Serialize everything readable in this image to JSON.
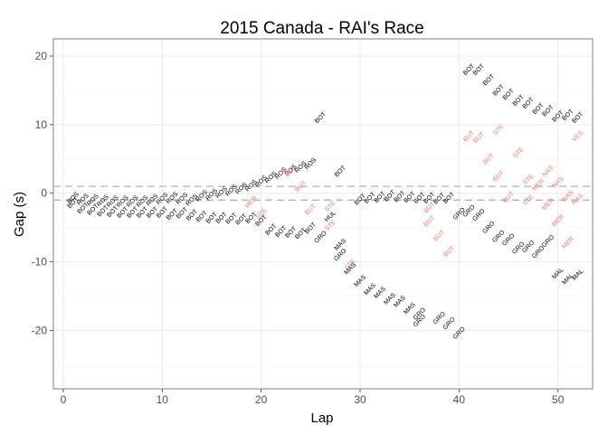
{
  "chart_data": {
    "type": "scatter",
    "title": "2015 Canada - RAI's Race",
    "xlabel": "Lap",
    "ylabel": "Gap (s)",
    "xlim": [
      -1,
      53.5
    ],
    "ylim": [
      -28.5,
      22.5
    ],
    "xticks": [
      0,
      10,
      20,
      30,
      40,
      50
    ],
    "yticks": [
      -20,
      -10,
      0,
      10,
      20
    ],
    "grid": true,
    "reference_lines": [
      1,
      -1
    ],
    "colors": {
      "normal": "#000000",
      "highlight": "#f8766d",
      "reference": "#b3b3b3"
    },
    "points": [
      {
        "x": 1,
        "y": -0.7,
        "label": "ROS",
        "h": false
      },
      {
        "x": 1,
        "y": -1.4,
        "label": "BOT",
        "h": false
      },
      {
        "x": 2,
        "y": -0.9,
        "label": "ROS",
        "h": false
      },
      {
        "x": 2,
        "y": -2.2,
        "label": "BOT",
        "h": false
      },
      {
        "x": 3,
        "y": -1.0,
        "label": "ROS",
        "h": false
      },
      {
        "x": 3,
        "y": -2.4,
        "label": "BOT",
        "h": false
      },
      {
        "x": 4,
        "y": -1.1,
        "label": "ROS",
        "h": false
      },
      {
        "x": 4,
        "y": -2.6,
        "label": "BOT",
        "h": false
      },
      {
        "x": 5,
        "y": -1.2,
        "label": "ROS",
        "h": false
      },
      {
        "x": 5,
        "y": -2.7,
        "label": "BOT",
        "h": false
      },
      {
        "x": 6,
        "y": -1.2,
        "label": "ROS",
        "h": false
      },
      {
        "x": 6,
        "y": -2.8,
        "label": "BOT",
        "h": false
      },
      {
        "x": 7,
        "y": -1.2,
        "label": "ROS",
        "h": false
      },
      {
        "x": 7,
        "y": -2.8,
        "label": "BOT",
        "h": false
      },
      {
        "x": 8,
        "y": -1.2,
        "label": "ROS",
        "h": false
      },
      {
        "x": 8,
        "y": -2.8,
        "label": "BOT",
        "h": false
      },
      {
        "x": 9,
        "y": -1.0,
        "label": "ROS",
        "h": false
      },
      {
        "x": 9,
        "y": -2.8,
        "label": "BOT",
        "h": false
      },
      {
        "x": 10,
        "y": -0.8,
        "label": "ROS",
        "h": false
      },
      {
        "x": 10,
        "y": -2.8,
        "label": "BOT",
        "h": false
      },
      {
        "x": 11,
        "y": -0.7,
        "label": "ROS",
        "h": false
      },
      {
        "x": 11,
        "y": -3.1,
        "label": "BOT",
        "h": false
      },
      {
        "x": 12,
        "y": -0.8,
        "label": "ROS",
        "h": false
      },
      {
        "x": 12,
        "y": -2.9,
        "label": "BOT",
        "h": false
      },
      {
        "x": 13,
        "y": -1.0,
        "label": "ROS",
        "h": false
      },
      {
        "x": 13,
        "y": -3.2,
        "label": "BOT",
        "h": false
      },
      {
        "x": 14,
        "y": -0.4,
        "label": "ROS",
        "h": false
      },
      {
        "x": 14,
        "y": -3.4,
        "label": "BOT",
        "h": false
      },
      {
        "x": 15,
        "y": -0.2,
        "label": "ROS",
        "h": false
      },
      {
        "x": 15,
        "y": -3.6,
        "label": "BOT",
        "h": false
      },
      {
        "x": 16,
        "y": 0.1,
        "label": "ROS",
        "h": false
      },
      {
        "x": 16,
        "y": -3.6,
        "label": "BOT",
        "h": false
      },
      {
        "x": 17,
        "y": 0.4,
        "label": "ROS",
        "h": false
      },
      {
        "x": 17,
        "y": -3.7,
        "label": "BOT",
        "h": false
      },
      {
        "x": 18,
        "y": 0.7,
        "label": "ROS",
        "h": false
      },
      {
        "x": 18,
        "y": -3.8,
        "label": "BOT",
        "h": false
      },
      {
        "x": 19,
        "y": 1.1,
        "label": "ROS",
        "h": false
      },
      {
        "x": 19,
        "y": -1.3,
        "label": "MER",
        "h": true
      },
      {
        "x": 19,
        "y": -3.6,
        "label": "BOT",
        "h": false
      },
      {
        "x": 20,
        "y": 1.7,
        "label": "ROS",
        "h": false
      },
      {
        "x": 20,
        "y": -3.0,
        "label": "STE",
        "h": true
      },
      {
        "x": 20,
        "y": -4.0,
        "label": "BOT",
        "h": false
      },
      {
        "x": 21,
        "y": 2.3,
        "label": "ROS",
        "h": false
      },
      {
        "x": 21,
        "y": -5.3,
        "label": "BOT",
        "h": false
      },
      {
        "x": 22,
        "y": 2.9,
        "label": "ROS",
        "h": false
      },
      {
        "x": 22,
        "y": -5.6,
        "label": "BOT",
        "h": false
      },
      {
        "x": 23,
        "y": 3.3,
        "label": "ROS",
        "h": false
      },
      {
        "x": 23,
        "y": 3.2,
        "label": "BUT",
        "h": true
      },
      {
        "x": 23,
        "y": -5.7,
        "label": "BOT",
        "h": false
      },
      {
        "x": 24,
        "y": 3.8,
        "label": "ROS",
        "h": false
      },
      {
        "x": 24,
        "y": 1.0,
        "label": "BUT",
        "h": true
      },
      {
        "x": 24,
        "y": -5.9,
        "label": "BOT",
        "h": false
      },
      {
        "x": 25,
        "y": 4.3,
        "label": "ROS",
        "h": false
      },
      {
        "x": 25,
        "y": -2.4,
        "label": "BUT",
        "h": true
      },
      {
        "x": 25,
        "y": -5.1,
        "label": "BOT",
        "h": false
      },
      {
        "x": 26,
        "y": 11.0,
        "label": "BOT",
        "h": false
      },
      {
        "x": 26,
        "y": -6.4,
        "label": "GRO",
        "h": false
      },
      {
        "x": 27,
        "y": -1.9,
        "label": "STE",
        "h": true
      },
      {
        "x": 27,
        "y": -3.4,
        "label": "HUL",
        "h": false
      },
      {
        "x": 27,
        "y": -4.7,
        "label": "STE",
        "h": true
      },
      {
        "x": 28,
        "y": 3.2,
        "label": "BOT",
        "h": false
      },
      {
        "x": 28,
        "y": -7.5,
        "label": "MAS",
        "h": false
      },
      {
        "x": 28,
        "y": -9.0,
        "label": "GRO",
        "h": false
      },
      {
        "x": 29,
        "y": -10.4,
        "label": "STE",
        "h": true
      },
      {
        "x": 29,
        "y": -11.0,
        "label": "MAS",
        "h": false
      },
      {
        "x": 30,
        "y": -0.9,
        "label": "BOT",
        "h": false
      },
      {
        "x": 30,
        "y": -12.8,
        "label": "MAS",
        "h": false
      },
      {
        "x": 31,
        "y": -0.7,
        "label": "BOT",
        "h": false
      },
      {
        "x": 31,
        "y": -14.0,
        "label": "MAS",
        "h": false
      },
      {
        "x": 32,
        "y": -0.6,
        "label": "BOT",
        "h": false
      },
      {
        "x": 32,
        "y": -14.5,
        "label": "MAS",
        "h": false
      },
      {
        "x": 33,
        "y": -0.4,
        "label": "BOT",
        "h": false
      },
      {
        "x": 33,
        "y": -15.4,
        "label": "MAS",
        "h": false
      },
      {
        "x": 34,
        "y": -0.5,
        "label": "BOT",
        "h": false
      },
      {
        "x": 34,
        "y": -15.8,
        "label": "MAS",
        "h": false
      },
      {
        "x": 35,
        "y": -0.6,
        "label": "BOT",
        "h": false
      },
      {
        "x": 35,
        "y": -16.8,
        "label": "MAS",
        "h": false
      },
      {
        "x": 36,
        "y": -0.7,
        "label": "BOT",
        "h": false
      },
      {
        "x": 36,
        "y": -17.6,
        "label": "GRO",
        "h": false
      },
      {
        "x": 36,
        "y": -18.6,
        "label": "GRO",
        "h": false
      },
      {
        "x": 37,
        "y": -0.7,
        "label": "BOT",
        "h": false
      },
      {
        "x": 37,
        "y": -2.1,
        "label": "BUT",
        "h": true
      },
      {
        "x": 37,
        "y": -4.1,
        "label": "BUT",
        "h": true
      },
      {
        "x": 38,
        "y": -0.8,
        "label": "BOT",
        "h": false
      },
      {
        "x": 38,
        "y": -18.2,
        "label": "GRO",
        "h": false
      },
      {
        "x": 38,
        "y": -6.2,
        "label": "BUT",
        "h": true
      },
      {
        "x": 39,
        "y": -0.7,
        "label": "BOT",
        "h": false
      },
      {
        "x": 39,
        "y": -19.0,
        "label": "GRO",
        "h": false
      },
      {
        "x": 39,
        "y": -8.5,
        "label": "BUT",
        "h": true
      },
      {
        "x": 40,
        "y": -3.0,
        "label": "GRO",
        "h": false
      },
      {
        "x": 40,
        "y": -20.4,
        "label": "GRO",
        "h": false
      },
      {
        "x": 41,
        "y": 18.0,
        "label": "BOT",
        "h": false
      },
      {
        "x": 41,
        "y": -2.6,
        "label": "GRO",
        "h": false
      },
      {
        "x": 41,
        "y": 8.3,
        "label": "BUT",
        "h": true
      },
      {
        "x": 42,
        "y": 18.0,
        "label": "BOT",
        "h": false
      },
      {
        "x": 42,
        "y": 8.1,
        "label": "BUT",
        "h": true
      },
      {
        "x": 42,
        "y": -3.2,
        "label": "GRO",
        "h": false
      },
      {
        "x": 43,
        "y": 16.5,
        "label": "BOT",
        "h": false
      },
      {
        "x": 43,
        "y": 5.0,
        "label": "BUT",
        "h": true
      },
      {
        "x": 43,
        "y": -5.0,
        "label": "GRO",
        "h": false
      },
      {
        "x": 44,
        "y": 15.0,
        "label": "BOT",
        "h": false
      },
      {
        "x": 44,
        "y": 9.3,
        "label": "STE",
        "h": true
      },
      {
        "x": 44,
        "y": 2.5,
        "label": "BUT",
        "h": true
      },
      {
        "x": 44,
        "y": -6.3,
        "label": "GRO",
        "h": false
      },
      {
        "x": 45,
        "y": 14.4,
        "label": "BOT",
        "h": false
      },
      {
        "x": 45,
        "y": -0.6,
        "label": "BUT",
        "h": true
      },
      {
        "x": 45,
        "y": -6.8,
        "label": "GRO",
        "h": false
      },
      {
        "x": 46,
        "y": 13.5,
        "label": "BOT",
        "h": false
      },
      {
        "x": 46,
        "y": 5.9,
        "label": "STE",
        "h": true
      },
      {
        "x": 46,
        "y": -8.0,
        "label": "GRO",
        "h": false
      },
      {
        "x": 47,
        "y": 13.1,
        "label": "BOT",
        "h": false
      },
      {
        "x": 47,
        "y": 2.0,
        "label": "STE",
        "h": true
      },
      {
        "x": 47,
        "y": -1.0,
        "label": "STE",
        "h": true
      },
      {
        "x": 47,
        "y": -7.8,
        "label": "GRO",
        "h": false
      },
      {
        "x": 48,
        "y": 12.3,
        "label": "BOT",
        "h": false
      },
      {
        "x": 48,
        "y": 1.2,
        "label": "MER",
        "h": true
      },
      {
        "x": 48,
        "y": -8.6,
        "label": "GRO",
        "h": false
      },
      {
        "x": 49,
        "y": 12.0,
        "label": "BOT",
        "h": false
      },
      {
        "x": 49,
        "y": 3.2,
        "label": "NAS",
        "h": true
      },
      {
        "x": 49,
        "y": -1.6,
        "label": "MER",
        "h": true
      },
      {
        "x": 49,
        "y": -7.0,
        "label": "GRO",
        "h": false
      },
      {
        "x": 50,
        "y": 11.2,
        "label": "BOT",
        "h": false
      },
      {
        "x": 50,
        "y": 1.6,
        "label": "NAS",
        "h": true
      },
      {
        "x": 50,
        "y": -4.0,
        "label": "MER",
        "h": true
      },
      {
        "x": 50,
        "y": -11.7,
        "label": "MAL",
        "h": false
      },
      {
        "x": 51,
        "y": 11.4,
        "label": "BOT",
        "h": false
      },
      {
        "x": 51,
        "y": -0.4,
        "label": "NAS",
        "h": true
      },
      {
        "x": 51,
        "y": -7.2,
        "label": "MER",
        "h": true
      },
      {
        "x": 51,
        "y": -12.5,
        "label": "MAL",
        "h": false
      },
      {
        "x": 52,
        "y": 11.0,
        "label": "BOT",
        "h": false
      },
      {
        "x": 52,
        "y": 8.3,
        "label": "VES",
        "h": true
      },
      {
        "x": 52,
        "y": -0.9,
        "label": "NAS",
        "h": true
      },
      {
        "x": 52,
        "y": -11.9,
        "label": "MAL",
        "h": false
      }
    ]
  }
}
